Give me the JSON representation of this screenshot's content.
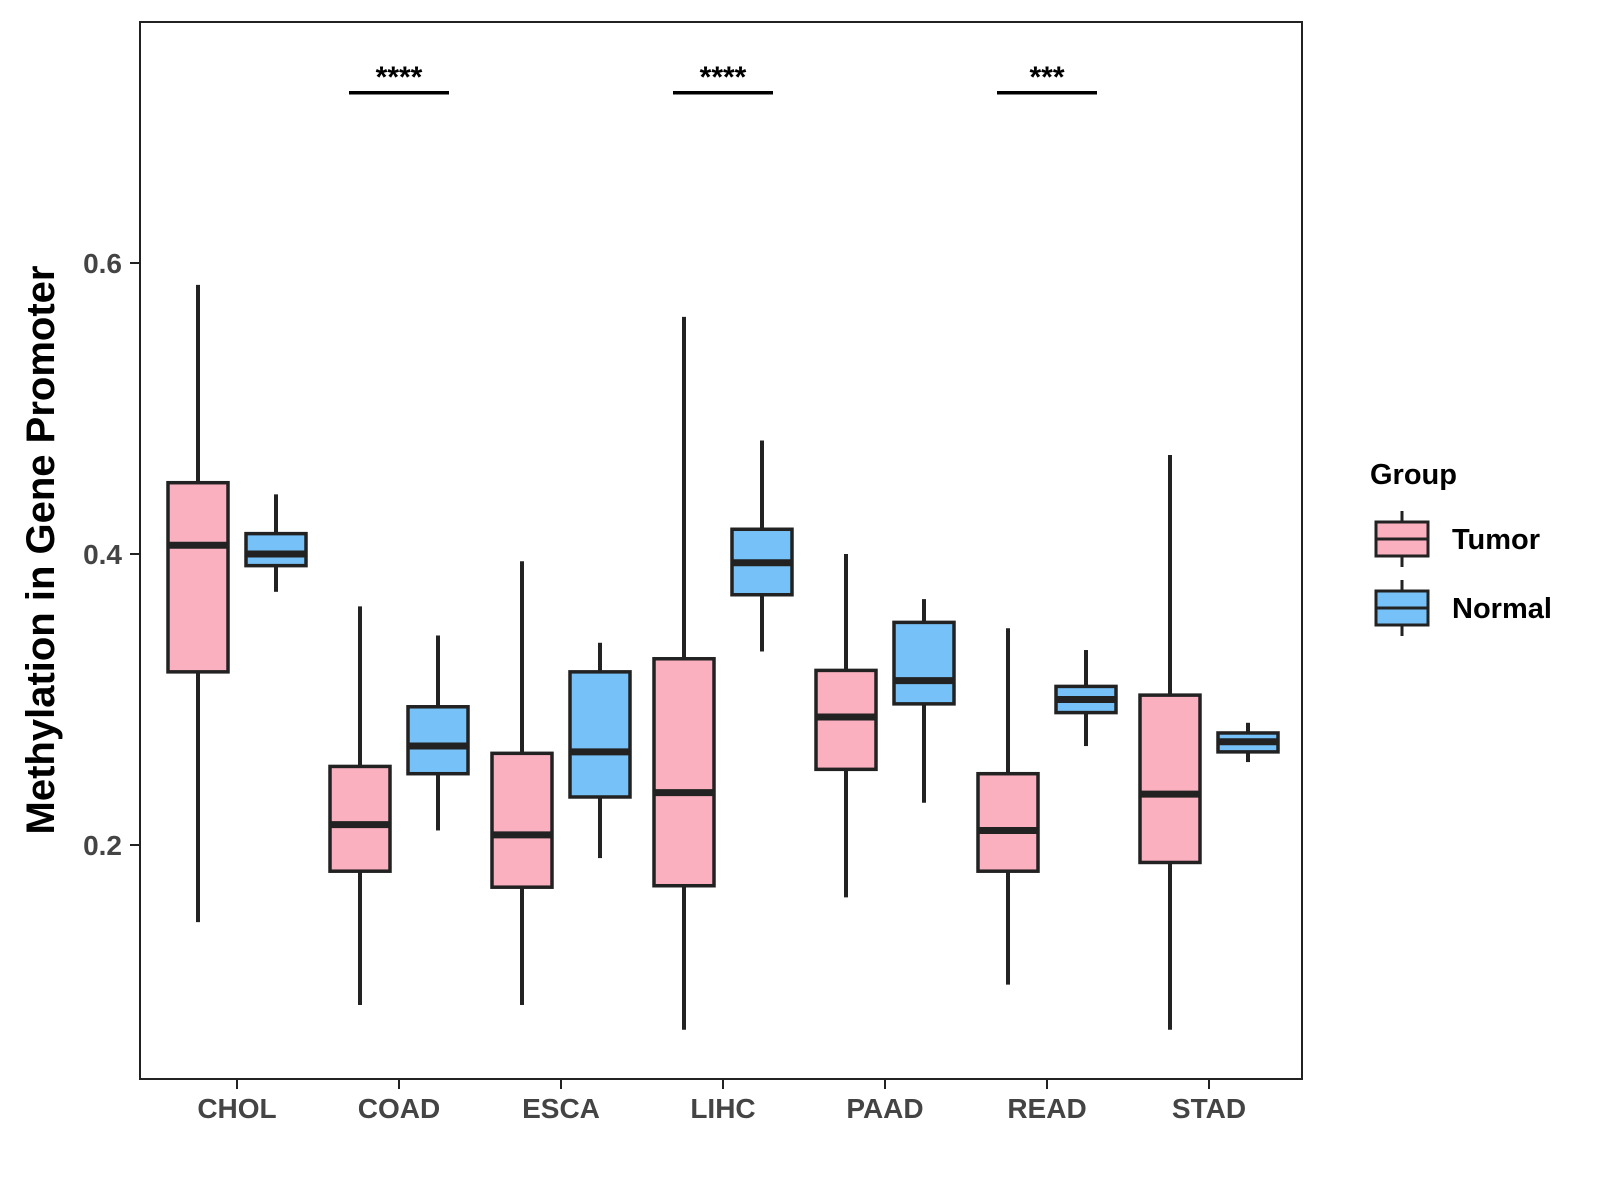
{
  "chart_data": {
    "type": "boxplot",
    "title": "",
    "xlabel": "",
    "ylabel": "Methylation in Gene Promoter",
    "ylim": [
      0.043,
      0.766
    ],
    "yticks": [
      {
        "value": 0.2,
        "label": "0.2"
      },
      {
        "value": 0.4,
        "label": "0.4"
      },
      {
        "value": 0.6,
        "label": "0.6"
      }
    ],
    "categories": [
      "CHOL",
      "COAD",
      "ESCA",
      "LIHC",
      "PAAD",
      "READ",
      "STAD"
    ],
    "legend": {
      "title": "Group",
      "position": "right",
      "entries": [
        {
          "name": "Tumor",
          "color": "#FBB0C0"
        },
        {
          "name": "Normal",
          "color": "#76C1F7"
        }
      ]
    },
    "series": [
      {
        "name": "Tumor",
        "color": "#FBB0C0",
        "boxes": [
          {
            "category": "CHOL",
            "min": 0.147,
            "q1": 0.319,
            "median": 0.406,
            "q3": 0.449,
            "max": 0.585
          },
          {
            "category": "COAD",
            "min": 0.09,
            "q1": 0.182,
            "median": 0.214,
            "q3": 0.254,
            "max": 0.364
          },
          {
            "category": "ESCA",
            "min": 0.09,
            "q1": 0.171,
            "median": 0.207,
            "q3": 0.263,
            "max": 0.395
          },
          {
            "category": "LIHC",
            "min": 0.073,
            "q1": 0.172,
            "median": 0.236,
            "q3": 0.328,
            "max": 0.563
          },
          {
            "category": "PAAD",
            "min": 0.164,
            "q1": 0.252,
            "median": 0.288,
            "q3": 0.32,
            "max": 0.4
          },
          {
            "category": "READ",
            "min": 0.104,
            "q1": 0.182,
            "median": 0.21,
            "q3": 0.249,
            "max": 0.349
          },
          {
            "category": "STAD",
            "min": 0.073,
            "q1": 0.188,
            "median": 0.235,
            "q3": 0.303,
            "max": 0.468
          }
        ]
      },
      {
        "name": "Normal",
        "color": "#76C1F7",
        "boxes": [
          {
            "category": "CHOL",
            "min": 0.374,
            "q1": 0.392,
            "median": 0.4,
            "q3": 0.414,
            "max": 0.441
          },
          {
            "category": "COAD",
            "min": 0.21,
            "q1": 0.249,
            "median": 0.268,
            "q3": 0.295,
            "max": 0.344
          },
          {
            "category": "ESCA",
            "min": 0.191,
            "q1": 0.233,
            "median": 0.264,
            "q3": 0.319,
            "max": 0.339
          },
          {
            "category": "LIHC",
            "min": 0.333,
            "q1": 0.372,
            "median": 0.394,
            "q3": 0.417,
            "max": 0.478
          },
          {
            "category": "PAAD",
            "min": 0.229,
            "q1": 0.297,
            "median": 0.313,
            "q3": 0.353,
            "max": 0.369
          },
          {
            "category": "READ",
            "min": 0.268,
            "q1": 0.291,
            "median": 0.3,
            "q3": 0.309,
            "max": 0.334
          },
          {
            "category": "STAD",
            "min": 0.257,
            "q1": 0.264,
            "median": 0.271,
            "q3": 0.277,
            "max": 0.284
          }
        ]
      }
    ],
    "significance": [
      {
        "category": "COAD",
        "label": "****",
        "y": 0.717
      },
      {
        "category": "LIHC",
        "label": "****",
        "y": 0.717
      },
      {
        "category": "READ",
        "label": "***",
        "y": 0.717
      }
    ],
    "grid": false
  }
}
